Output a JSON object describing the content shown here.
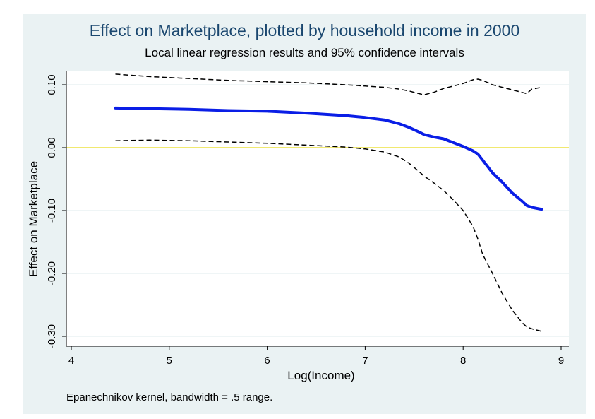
{
  "chart_data": {
    "type": "line",
    "title": "Effect on Marketplace, plotted by household income in 2000",
    "subtitle": "Local linear regression results and 95% confidence intervals",
    "note": "Epanechnikov kernel, bandwidth = .5 range.",
    "xlabel": "Log(Income)",
    "ylabel": "Effect on Marketplace",
    "xlim": [
      4,
      9
    ],
    "ylim": [
      -0.3,
      0.1
    ],
    "x_ticks": [
      4,
      5,
      6,
      7,
      8,
      9
    ],
    "x_tick_labels": [
      "4",
      "5",
      "6",
      "7",
      "8",
      "9"
    ],
    "y_ticks": [
      0.1,
      0.0,
      -0.1,
      -0.2,
      -0.3
    ],
    "y_tick_labels": [
      "0.10",
      "0.00",
      "-0.10",
      "-0.20",
      "-0.30"
    ],
    "grid": true,
    "reference_line": {
      "y": 0.0,
      "color": "#f0e442"
    },
    "colors": {
      "panel": "#eaf2f3",
      "plot": "#ffffff",
      "grid": "#eaf2f3",
      "title": "#1a476f",
      "estimate": "#0a1ee6",
      "ci": "#000000"
    },
    "x": [
      4.45,
      4.8,
      5.2,
      5.6,
      6.0,
      6.4,
      6.8,
      7.0,
      7.2,
      7.35,
      7.45,
      7.55,
      7.6,
      7.7,
      7.8,
      7.9,
      8.0,
      8.1,
      8.15,
      8.2,
      8.3,
      8.4,
      8.5,
      8.6,
      8.65,
      8.7,
      8.8
    ],
    "series": [
      {
        "style": "solid",
        "values": [
          0.063,
          0.062,
          0.061,
          0.059,
          0.058,
          0.055,
          0.051,
          0.048,
          0.044,
          0.038,
          0.032,
          0.025,
          0.021,
          0.017,
          0.014,
          0.008,
          0.002,
          -0.005,
          -0.01,
          -0.02,
          -0.04,
          -0.055,
          -0.072,
          -0.085,
          -0.092,
          -0.095,
          -0.098
        ]
      },
      {
        "style": "dashed",
        "values": [
          0.117,
          0.113,
          0.11,
          0.107,
          0.105,
          0.103,
          0.1,
          0.098,
          0.096,
          0.093,
          0.09,
          0.086,
          0.084,
          0.088,
          0.094,
          0.098,
          0.102,
          0.108,
          0.109,
          0.107,
          0.1,
          0.096,
          0.092,
          0.088,
          0.086,
          0.093,
          0.096
        ]
      },
      {
        "style": "dashed",
        "values": [
          0.011,
          0.012,
          0.011,
          0.009,
          0.007,
          0.004,
          0.001,
          -0.002,
          -0.007,
          -0.015,
          -0.025,
          -0.038,
          -0.045,
          -0.056,
          -0.068,
          -0.083,
          -0.1,
          -0.125,
          -0.145,
          -0.17,
          -0.2,
          -0.232,
          -0.258,
          -0.278,
          -0.285,
          -0.288,
          -0.292
        ]
      }
    ]
  }
}
